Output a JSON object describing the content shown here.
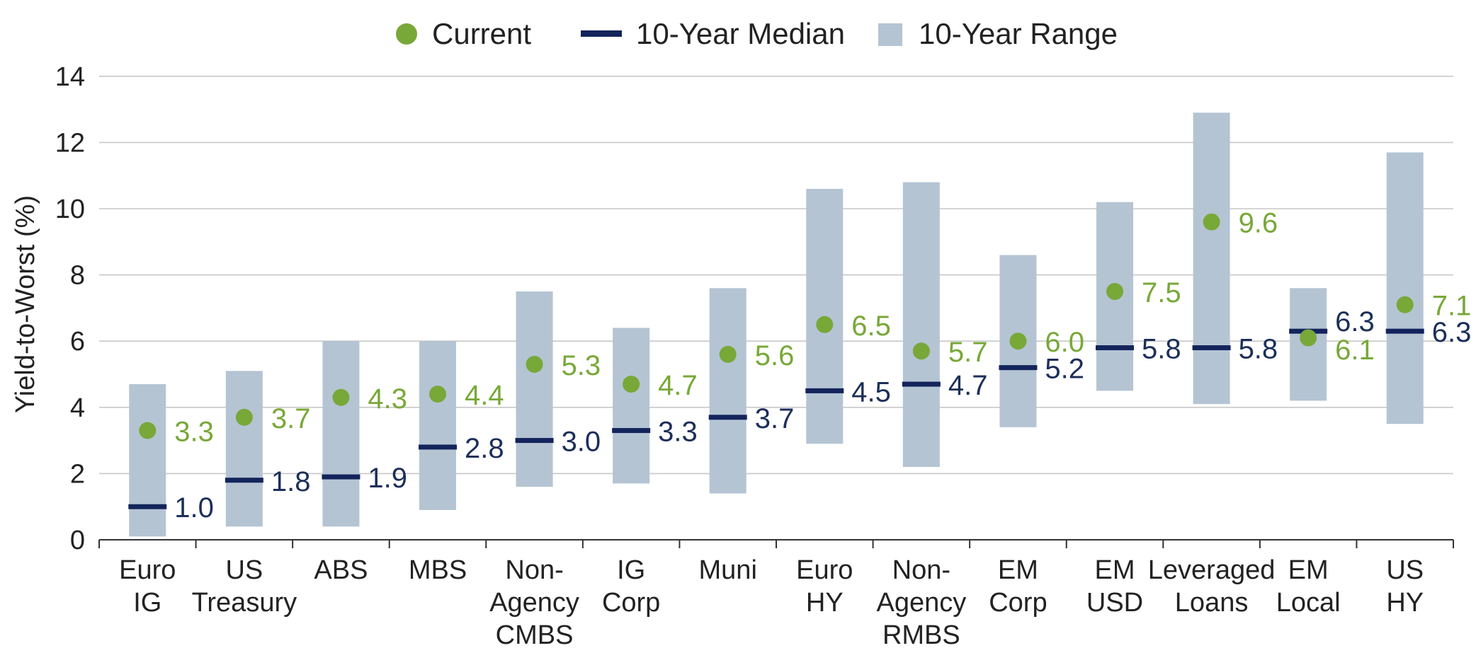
{
  "chart_data": {
    "type": "range-dot",
    "ylabel": "Yield-to-Worst (%)",
    "ylim": [
      0,
      14
    ],
    "yticks": [
      "0",
      "2",
      "4",
      "6",
      "8",
      "10",
      "12",
      "14"
    ],
    "grid": true,
    "legend_position": "top-center",
    "legend": {
      "current": "Current",
      "median": "10-Year Median",
      "range": "10-Year Range"
    },
    "colors": {
      "current": "#78a838",
      "median": "#13245c",
      "range": "#b4c4d3",
      "current_label": "#78a838",
      "median_label": "#1c2f5a"
    },
    "categories": [
      {
        "label": [
          "Euro",
          "IG"
        ],
        "current": 3.3,
        "current_label": "3.3",
        "median": 1.0,
        "median_label": "1.0",
        "range_low": 0.1,
        "range_high": 4.7
      },
      {
        "label": [
          "US",
          "Treasury"
        ],
        "current": 3.7,
        "current_label": "3.7",
        "median": 1.8,
        "median_label": "1.8",
        "range_low": 0.4,
        "range_high": 5.1
      },
      {
        "label": [
          "ABS"
        ],
        "current": 4.3,
        "current_label": "4.3",
        "median": 1.9,
        "median_label": "1.9",
        "range_low": 0.4,
        "range_high": 6.0
      },
      {
        "label": [
          "MBS"
        ],
        "current": 4.4,
        "current_label": "4.4",
        "median": 2.8,
        "median_label": "2.8",
        "range_low": 0.9,
        "range_high": 6.0
      },
      {
        "label": [
          "Non-",
          "Agency",
          "CMBS"
        ],
        "current": 5.3,
        "current_label": "5.3",
        "median": 3.0,
        "median_label": "3.0",
        "range_low": 1.6,
        "range_high": 7.5
      },
      {
        "label": [
          "IG",
          "Corp"
        ],
        "current": 4.7,
        "current_label": "4.7",
        "median": 3.3,
        "median_label": "3.3",
        "range_low": 1.7,
        "range_high": 6.4
      },
      {
        "label": [
          "Muni"
        ],
        "current": 5.6,
        "current_label": "5.6",
        "median": 3.7,
        "median_label": "3.7",
        "range_low": 1.4,
        "range_high": 7.6
      },
      {
        "label": [
          "Euro",
          "HY"
        ],
        "current": 6.5,
        "current_label": "6.5",
        "median": 4.5,
        "median_label": "4.5",
        "range_low": 2.9,
        "range_high": 10.6
      },
      {
        "label": [
          "Non-",
          "Agency",
          "RMBS"
        ],
        "current": 5.7,
        "current_label": "5.7",
        "median": 4.7,
        "median_label": "4.7",
        "range_low": 2.2,
        "range_high": 10.8
      },
      {
        "label": [
          "EM",
          "Corp"
        ],
        "current": 6.0,
        "current_label": "6.0",
        "median": 5.2,
        "median_label": "5.2",
        "range_low": 3.4,
        "range_high": 8.6
      },
      {
        "label": [
          "EM",
          "USD"
        ],
        "current": 7.5,
        "current_label": "7.5",
        "median": 5.8,
        "median_label": "5.8",
        "range_low": 4.5,
        "range_high": 10.2
      },
      {
        "label": [
          "Leveraged",
          "Loans"
        ],
        "current": 9.6,
        "current_label": "9.6",
        "median": 5.8,
        "median_label": "5.8",
        "range_low": 4.1,
        "range_high": 12.9
      },
      {
        "label": [
          "EM",
          "Local"
        ],
        "current": 6.1,
        "current_label": "6.1",
        "median": 6.3,
        "median_label": "6.3",
        "range_low": 4.2,
        "range_high": 7.6
      },
      {
        "label": [
          "US",
          "HY"
        ],
        "current": 7.1,
        "current_label": "7.1",
        "median": 6.3,
        "median_label": "6.3",
        "range_low": 3.5,
        "range_high": 11.7
      }
    ]
  }
}
